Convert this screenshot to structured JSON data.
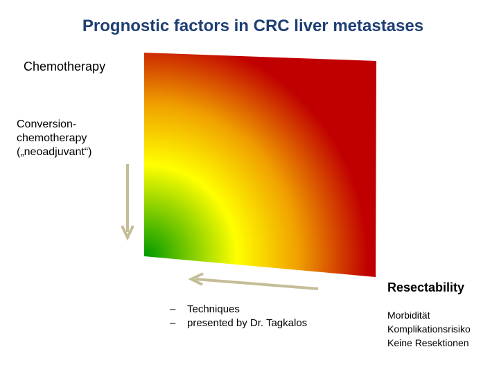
{
  "title": "Prognostic factors in CRC liver metastases",
  "left_labels": {
    "chemotherapy": "Chemotherapy",
    "conversion_lines": [
      "Conversion-",
      "chemotherapy",
      "(„neoadjuvant“)"
    ]
  },
  "bottom_labels": {
    "resectability": "Resectability",
    "bullet_dash": "–",
    "bullets": [
      "Techniques",
      "presented by Dr. Tagkalos"
    ],
    "risk_lines": [
      "Morbidität",
      "Komplikationsrisiko",
      "Keine Resektionen"
    ]
  },
  "colors": {
    "title": "#1f3f73",
    "gradient_stops": [
      "#009900",
      "#ffff00",
      "#f0a000",
      "#c00000"
    ],
    "arrow": "#c4bd97"
  },
  "icons": {
    "vertical_arrow": "arrow-down-icon",
    "horizontal_arrow": "arrow-left-icon"
  }
}
